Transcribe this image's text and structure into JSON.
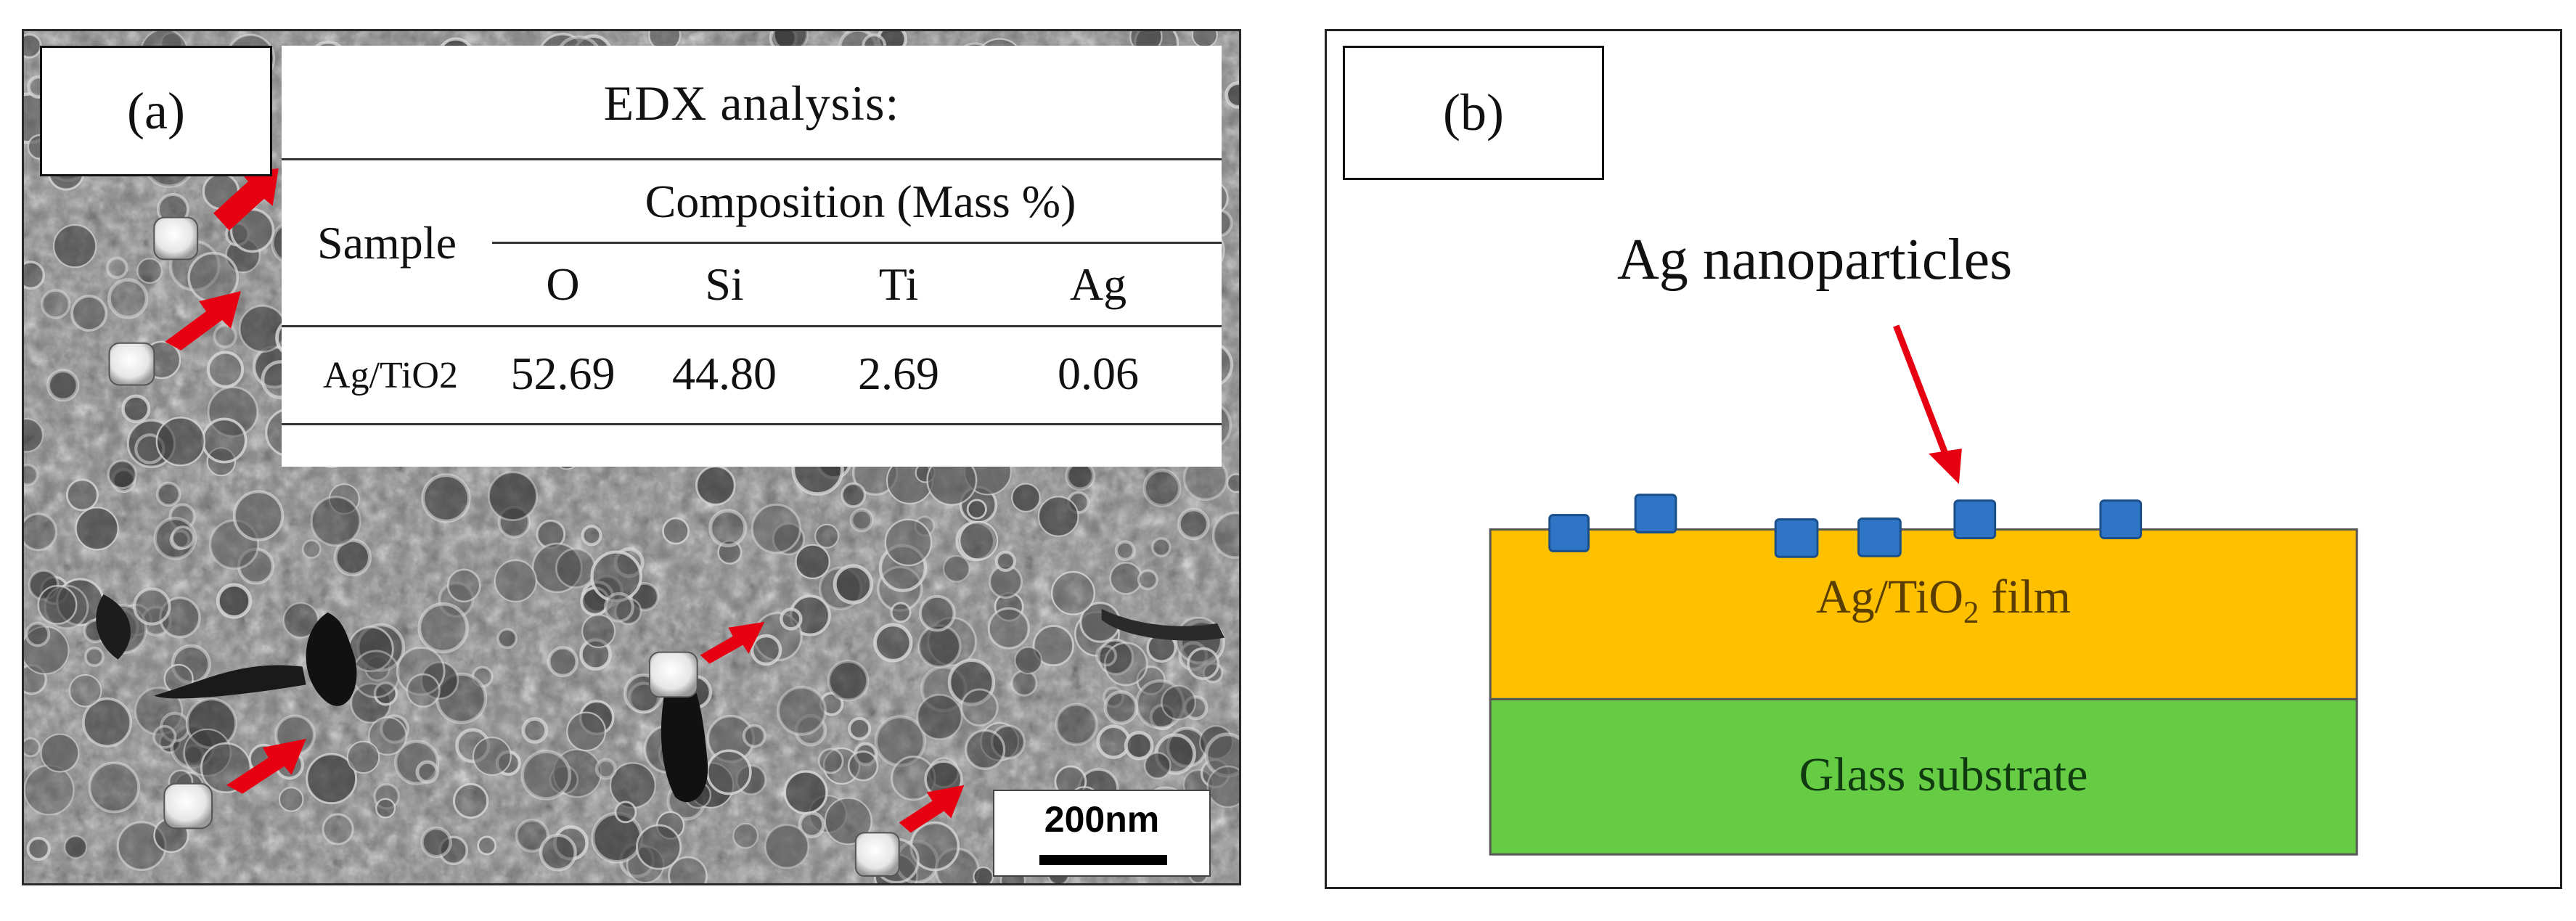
{
  "panel_a": {
    "label": "(a)",
    "edx": {
      "title": "EDX analysis:",
      "sample_header": "Sample",
      "composition_header": "Composition (Mass %)",
      "elements": [
        "O",
        "Si",
        "Ti",
        "Ag"
      ],
      "sample_name": "Ag/TiO2",
      "values": [
        "52.69",
        "44.80",
        "2.69",
        "0.06"
      ]
    },
    "scale_bar_label": "200nm"
  },
  "panel_b": {
    "label": "(b)",
    "nanoparticle_label": "Ag nanoparticles",
    "film_label_prefix": "Ag/TiO",
    "film_label_subscript": "2",
    "film_label_suffix": " film",
    "substrate_label": "Glass substrate",
    "colors": {
      "film": "#ffc000",
      "substrate": "#66cc44",
      "nanoparticle": "#2e75c6",
      "arrow": "#e60012"
    }
  }
}
